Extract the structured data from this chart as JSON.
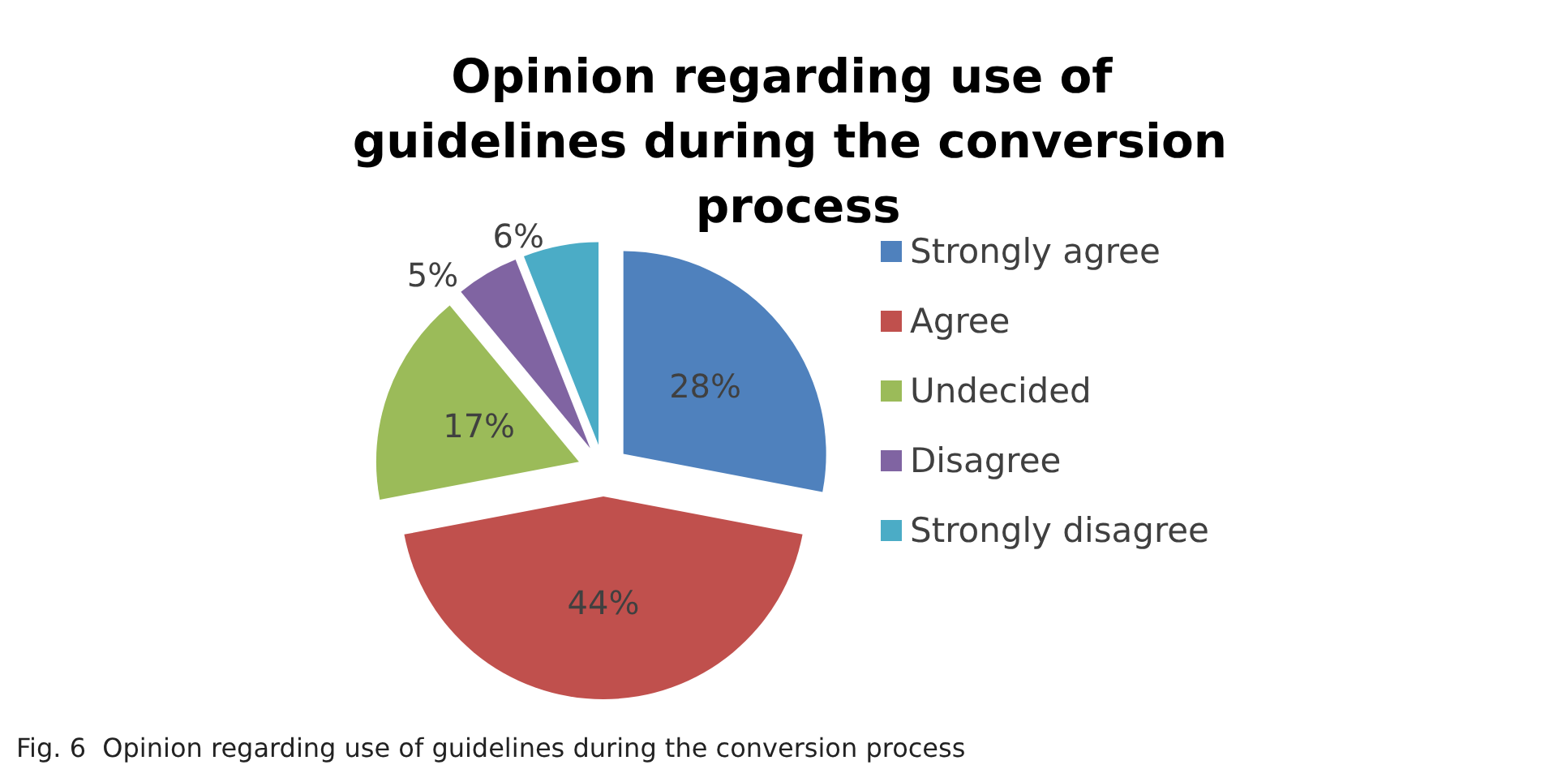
{
  "chart_data": {
    "type": "pie",
    "title": "Opinion regarding use of guidelines during the conversion process",
    "categories": [
      "Strongly agree",
      "Agree",
      "Undecided",
      "Disagree",
      "Strongly disagree"
    ],
    "values": [
      28,
      44,
      17,
      5,
      6
    ],
    "colors": [
      "#4f81bd",
      "#c0504d",
      "#9bbb59",
      "#8064a2",
      "#4bacc6"
    ],
    "value_labels": [
      "28%",
      "44%",
      "17%",
      "5%",
      "6%"
    ],
    "legend": "right",
    "annotations": [
      "Fig. 6  Opinion regarding use of guidelines during the conversion process"
    ]
  }
}
